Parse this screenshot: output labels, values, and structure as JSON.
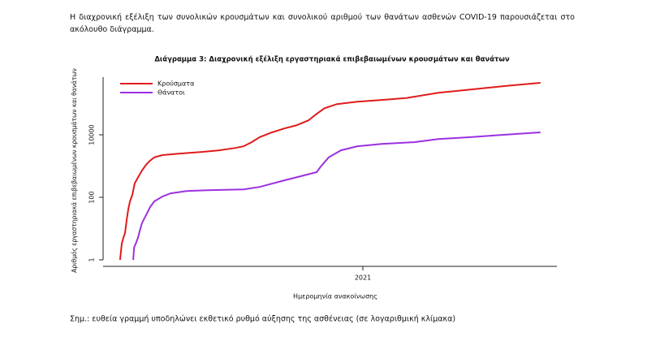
{
  "paragraph": "Η διαχρονική εξέλιξη των συνολικών κρουσμάτων και συνολικού αριθμού των θανάτων ασθενών COVID-19 παρουσιάζεται στο ακόλουθο διάγραμμα.",
  "chart_data": {
    "type": "line",
    "title": "Διάγραμμα 3: Διαχρονική εξέλιξη εργαστηριακά επιβεβαιωμένων κρουσμάτων και θανάτων",
    "xlabel": "Ημερομηνία ανακοίνωσης",
    "ylabel": "Αριθμός εργαστηριακά επιβεβαιωμένων κρουσμάτων και θανάτων",
    "yscale": "log",
    "xlim": [
      2020.111,
      2021.664
    ],
    "xticks": [
      2021
    ],
    "ylim": [
      1,
      700000
    ],
    "yticks": [
      1,
      100,
      10000
    ],
    "legend": "top-left",
    "series": [
      {
        "name": "Κρούσματα",
        "color": "#e01b1b",
        "x": [
          2020.169,
          2020.175,
          2020.181,
          2020.186,
          2020.192,
          2020.197,
          2020.203,
          2020.211,
          2020.219,
          2020.231,
          2020.244,
          2020.258,
          2020.272,
          2020.286,
          2020.314,
          2020.369,
          2020.453,
          2020.508,
          2020.564,
          2020.592,
          2020.619,
          2020.647,
          2020.689,
          2020.731,
          2020.772,
          2020.814,
          2020.842,
          2020.869,
          2020.911,
          2020.981,
          2021.064,
          2021.147,
          2021.258,
          2021.369,
          2021.481,
          2021.608
        ],
        "values": [
          1,
          3.3,
          5.3,
          7.2,
          20,
          41,
          74,
          120,
          277,
          445,
          720,
          1100,
          1500,
          1900,
          2250,
          2500,
          2850,
          3200,
          3800,
          4300,
          5800,
          8400,
          12000,
          16000,
          20000,
          29000,
          47000,
          71000,
          96000,
          115000,
          130000,
          150000,
          220000,
          280000,
          360000,
          460000
        ]
      },
      {
        "name": "Θάνατοι",
        "color": "#9b30e0",
        "x": [
          2020.214,
          2020.217,
          2020.225,
          2020.231,
          2020.236,
          2020.244,
          2020.258,
          2020.272,
          2020.286,
          2020.314,
          2020.342,
          2020.397,
          2020.481,
          2020.592,
          2020.647,
          2020.731,
          2020.786,
          2020.842,
          2020.856,
          2020.883,
          2020.925,
          2020.981,
          2021.064,
          2021.175,
          2021.258,
          2021.369,
          2021.481,
          2021.608
        ],
        "values": [
          1,
          2.5,
          3.7,
          5.3,
          8.1,
          15,
          27,
          49,
          74,
          106,
          134,
          160,
          170,
          180,
          215,
          350,
          470,
          640,
          970,
          1900,
          3200,
          4300,
          5100,
          5800,
          7300,
          8400,
          10000,
          12000
        ]
      }
    ]
  },
  "note": "Σημ.: ευθεία γραμμή υποδηλώνει εκθετικό ρυθμό αύξησης της ασθένειας (σε λογαριθμική κλίμακα)"
}
